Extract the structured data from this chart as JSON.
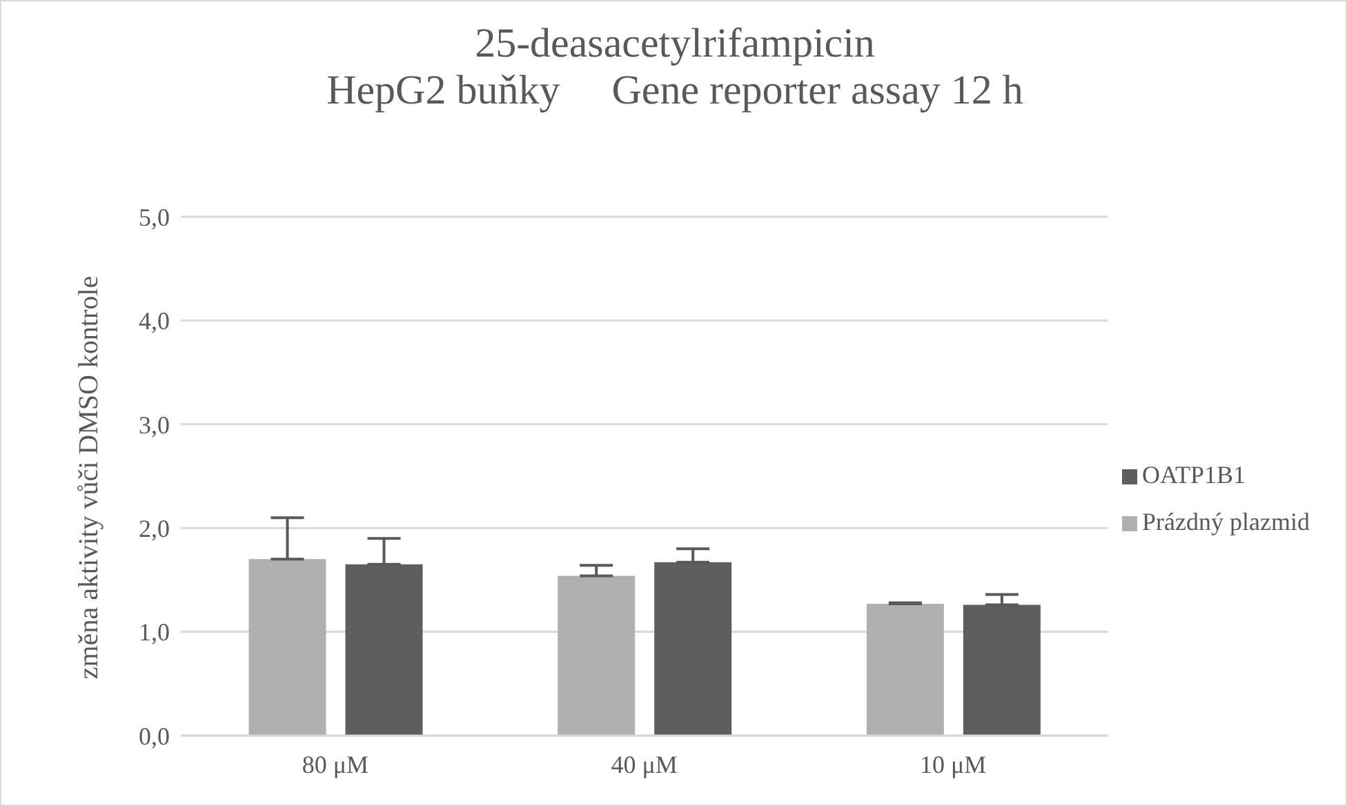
{
  "chart_data": {
    "type": "bar",
    "title": "25-deasacetylrifampicin",
    "subtitle": "HepG2 buňky     Gene reporter assay 12 h",
    "ylabel": "změna aktivity vůči DMSO kontrole",
    "categories": [
      "80 μM",
      "40 μM",
      "10 μM"
    ],
    "series": [
      {
        "name": "Prázdný plazmid",
        "color": "#b0b0b0",
        "values": [
          1.7,
          1.54,
          1.27
        ],
        "errors": [
          [
            1.7,
            2.1
          ],
          [
            1.54,
            1.64
          ],
          [
            1.27,
            1.28
          ]
        ]
      },
      {
        "name": "OATP1B1",
        "color": "#5e5e5e",
        "values": [
          1.65,
          1.67,
          1.26
        ],
        "errors": [
          [
            1.65,
            1.9
          ],
          [
            1.67,
            1.8
          ],
          [
            1.26,
            1.36
          ]
        ]
      }
    ],
    "ylim": [
      0,
      5
    ],
    "yticks": [
      {
        "value": 0,
        "label": "0,0"
      },
      {
        "value": 1,
        "label": "1,0"
      },
      {
        "value": 2,
        "label": "2,0"
      },
      {
        "value": 3,
        "label": "3,0"
      },
      {
        "value": 4,
        "label": "4,0"
      },
      {
        "value": 5,
        "label": "5,0"
      }
    ],
    "grid": "y",
    "legend": "right"
  }
}
